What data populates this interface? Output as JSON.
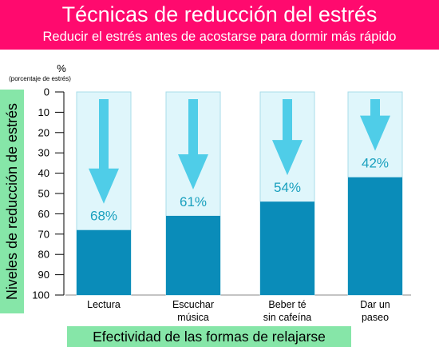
{
  "header": {
    "title": "Técnicas de reducción del estrés",
    "subtitle": "Reducir el estrés antes de acostarse para dormir más rápido"
  },
  "colors": {
    "header_bg": "#ff0a6e",
    "label_bg": "#86e6a8",
    "bar_fill": "#0a8cb9",
    "bar_bg": "#dff6fb",
    "arrow": "#4fcde8",
    "value_text": "#1aa0be"
  },
  "chart_data": {
    "type": "bar",
    "title": "Técnicas de reducción del estrés",
    "subtitle": "Reducir el estrés antes de acostarse para dormir más rápido",
    "xlabel": "Efectividad de las formas de relajarse",
    "ylabel": "Niveles de reducción de estrés",
    "y_unit": "%",
    "y_unit_note": "(porcentaje de estrés)",
    "ylim": [
      0,
      100
    ],
    "y_inverted": true,
    "yticks": [
      0,
      10,
      20,
      30,
      40,
      50,
      60,
      70,
      80,
      90,
      100
    ],
    "categories": [
      [
        "Lectura"
      ],
      [
        "Escuchar",
        "música"
      ],
      [
        "Beber té",
        "sin cafeína"
      ],
      [
        "Dar un",
        "paseo"
      ]
    ],
    "values": [
      68,
      61,
      54,
      42
    ],
    "value_labels": [
      "68%",
      "61%",
      "54%",
      "42%"
    ],
    "grid": false,
    "legend": "none"
  }
}
